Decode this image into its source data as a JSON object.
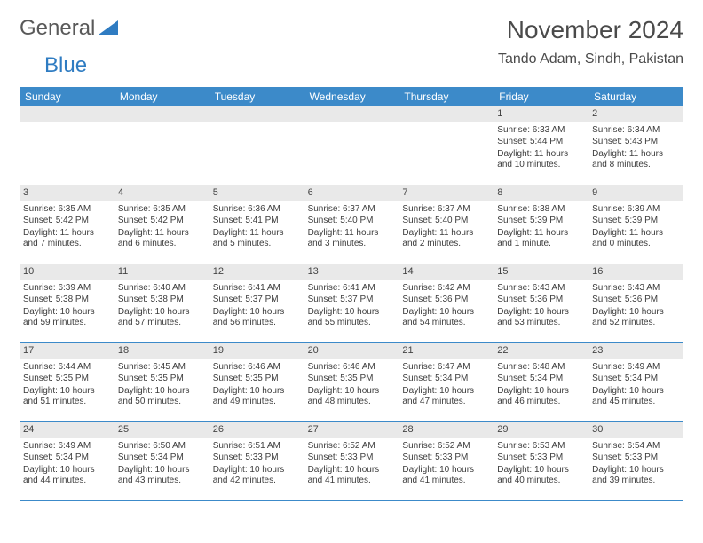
{
  "logo": {
    "text1": "General",
    "text2": "Blue",
    "color1": "#595959",
    "color2": "#2f7cc2",
    "icon_color": "#2f7cc2"
  },
  "title": "November 2024",
  "location": "Tando Adam, Sindh, Pakistan",
  "weekday_header_bg": "#3c8ac9",
  "weekdays": [
    "Sunday",
    "Monday",
    "Tuesday",
    "Wednesday",
    "Thursday",
    "Friday",
    "Saturday"
  ],
  "daynum_bg": "#e9e9e9",
  "row_divider_color": "#3c8ac9",
  "text_color": "#3c3c3c",
  "weeks": [
    [
      null,
      null,
      null,
      null,
      null,
      {
        "n": "1",
        "sunrise": "Sunrise: 6:33 AM",
        "sunset": "Sunset: 5:44 PM",
        "daylight": "Daylight: 11 hours and 10 minutes."
      },
      {
        "n": "2",
        "sunrise": "Sunrise: 6:34 AM",
        "sunset": "Sunset: 5:43 PM",
        "daylight": "Daylight: 11 hours and 8 minutes."
      }
    ],
    [
      {
        "n": "3",
        "sunrise": "Sunrise: 6:35 AM",
        "sunset": "Sunset: 5:42 PM",
        "daylight": "Daylight: 11 hours and 7 minutes."
      },
      {
        "n": "4",
        "sunrise": "Sunrise: 6:35 AM",
        "sunset": "Sunset: 5:42 PM",
        "daylight": "Daylight: 11 hours and 6 minutes."
      },
      {
        "n": "5",
        "sunrise": "Sunrise: 6:36 AM",
        "sunset": "Sunset: 5:41 PM",
        "daylight": "Daylight: 11 hours and 5 minutes."
      },
      {
        "n": "6",
        "sunrise": "Sunrise: 6:37 AM",
        "sunset": "Sunset: 5:40 PM",
        "daylight": "Daylight: 11 hours and 3 minutes."
      },
      {
        "n": "7",
        "sunrise": "Sunrise: 6:37 AM",
        "sunset": "Sunset: 5:40 PM",
        "daylight": "Daylight: 11 hours and 2 minutes."
      },
      {
        "n": "8",
        "sunrise": "Sunrise: 6:38 AM",
        "sunset": "Sunset: 5:39 PM",
        "daylight": "Daylight: 11 hours and 1 minute."
      },
      {
        "n": "9",
        "sunrise": "Sunrise: 6:39 AM",
        "sunset": "Sunset: 5:39 PM",
        "daylight": "Daylight: 11 hours and 0 minutes."
      }
    ],
    [
      {
        "n": "10",
        "sunrise": "Sunrise: 6:39 AM",
        "sunset": "Sunset: 5:38 PM",
        "daylight": "Daylight: 10 hours and 59 minutes."
      },
      {
        "n": "11",
        "sunrise": "Sunrise: 6:40 AM",
        "sunset": "Sunset: 5:38 PM",
        "daylight": "Daylight: 10 hours and 57 minutes."
      },
      {
        "n": "12",
        "sunrise": "Sunrise: 6:41 AM",
        "sunset": "Sunset: 5:37 PM",
        "daylight": "Daylight: 10 hours and 56 minutes."
      },
      {
        "n": "13",
        "sunrise": "Sunrise: 6:41 AM",
        "sunset": "Sunset: 5:37 PM",
        "daylight": "Daylight: 10 hours and 55 minutes."
      },
      {
        "n": "14",
        "sunrise": "Sunrise: 6:42 AM",
        "sunset": "Sunset: 5:36 PM",
        "daylight": "Daylight: 10 hours and 54 minutes."
      },
      {
        "n": "15",
        "sunrise": "Sunrise: 6:43 AM",
        "sunset": "Sunset: 5:36 PM",
        "daylight": "Daylight: 10 hours and 53 minutes."
      },
      {
        "n": "16",
        "sunrise": "Sunrise: 6:43 AM",
        "sunset": "Sunset: 5:36 PM",
        "daylight": "Daylight: 10 hours and 52 minutes."
      }
    ],
    [
      {
        "n": "17",
        "sunrise": "Sunrise: 6:44 AM",
        "sunset": "Sunset: 5:35 PM",
        "daylight": "Daylight: 10 hours and 51 minutes."
      },
      {
        "n": "18",
        "sunrise": "Sunrise: 6:45 AM",
        "sunset": "Sunset: 5:35 PM",
        "daylight": "Daylight: 10 hours and 50 minutes."
      },
      {
        "n": "19",
        "sunrise": "Sunrise: 6:46 AM",
        "sunset": "Sunset: 5:35 PM",
        "daylight": "Daylight: 10 hours and 49 minutes."
      },
      {
        "n": "20",
        "sunrise": "Sunrise: 6:46 AM",
        "sunset": "Sunset: 5:35 PM",
        "daylight": "Daylight: 10 hours and 48 minutes."
      },
      {
        "n": "21",
        "sunrise": "Sunrise: 6:47 AM",
        "sunset": "Sunset: 5:34 PM",
        "daylight": "Daylight: 10 hours and 47 minutes."
      },
      {
        "n": "22",
        "sunrise": "Sunrise: 6:48 AM",
        "sunset": "Sunset: 5:34 PM",
        "daylight": "Daylight: 10 hours and 46 minutes."
      },
      {
        "n": "23",
        "sunrise": "Sunrise: 6:49 AM",
        "sunset": "Sunset: 5:34 PM",
        "daylight": "Daylight: 10 hours and 45 minutes."
      }
    ],
    [
      {
        "n": "24",
        "sunrise": "Sunrise: 6:49 AM",
        "sunset": "Sunset: 5:34 PM",
        "daylight": "Daylight: 10 hours and 44 minutes."
      },
      {
        "n": "25",
        "sunrise": "Sunrise: 6:50 AM",
        "sunset": "Sunset: 5:34 PM",
        "daylight": "Daylight: 10 hours and 43 minutes."
      },
      {
        "n": "26",
        "sunrise": "Sunrise: 6:51 AM",
        "sunset": "Sunset: 5:33 PM",
        "daylight": "Daylight: 10 hours and 42 minutes."
      },
      {
        "n": "27",
        "sunrise": "Sunrise: 6:52 AM",
        "sunset": "Sunset: 5:33 PM",
        "daylight": "Daylight: 10 hours and 41 minutes."
      },
      {
        "n": "28",
        "sunrise": "Sunrise: 6:52 AM",
        "sunset": "Sunset: 5:33 PM",
        "daylight": "Daylight: 10 hours and 41 minutes."
      },
      {
        "n": "29",
        "sunrise": "Sunrise: 6:53 AM",
        "sunset": "Sunset: 5:33 PM",
        "daylight": "Daylight: 10 hours and 40 minutes."
      },
      {
        "n": "30",
        "sunrise": "Sunrise: 6:54 AM",
        "sunset": "Sunset: 5:33 PM",
        "daylight": "Daylight: 10 hours and 39 minutes."
      }
    ]
  ]
}
